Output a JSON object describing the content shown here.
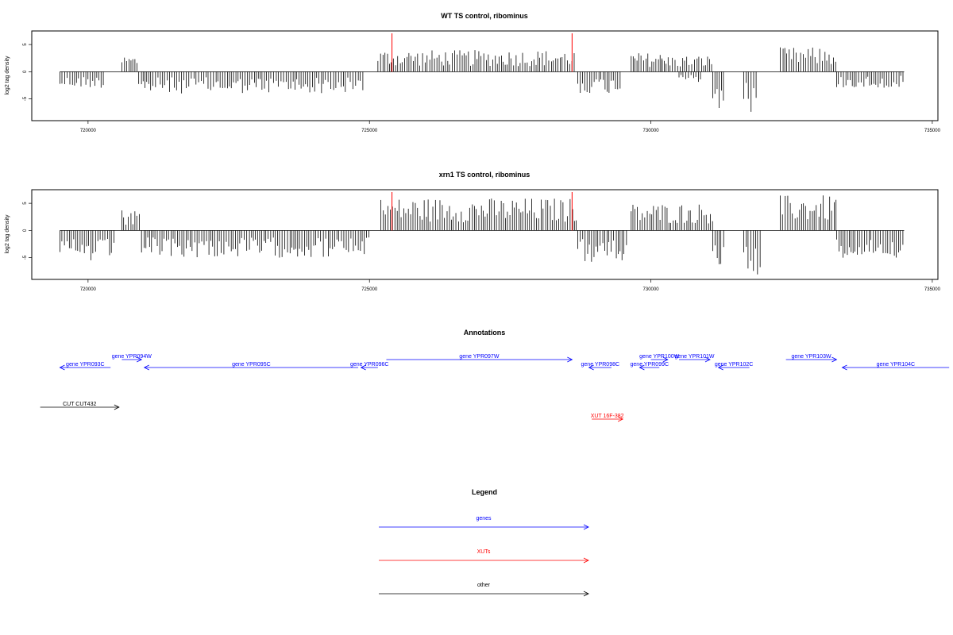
{
  "chart_data": [
    {
      "type": "bar",
      "title": "WT TS control, ribominus",
      "xlabel": "",
      "ylabel": "log2 tag density",
      "xlim": [
        719000,
        735100
      ],
      "ylim": [
        -9,
        7.5
      ],
      "xticks": [
        720000,
        725000,
        730000,
        735000
      ],
      "yticks": [
        -5,
        0,
        5
      ],
      "markers": [
        725400,
        728600
      ],
      "marker_color": "#ff0000",
      "segments": [
        {
          "start": 719500,
          "end": 720300,
          "lo": -3,
          "hi": 0
        },
        {
          "start": 720600,
          "end": 720900,
          "lo": 0,
          "hi": 3
        },
        {
          "start": 720900,
          "end": 724900,
          "lo": -4,
          "hi": 0
        },
        {
          "start": 725150,
          "end": 728650,
          "lo": 0,
          "hi": 4
        },
        {
          "start": 728700,
          "end": 729500,
          "lo": -4,
          "hi": 0
        },
        {
          "start": 729650,
          "end": 730200,
          "lo": 0,
          "hi": 3.5
        },
        {
          "start": 730500,
          "end": 730900,
          "lo": -2,
          "hi": 0
        },
        {
          "start": 730200,
          "end": 731100,
          "lo": 0,
          "hi": 3
        },
        {
          "start": 731100,
          "end": 731300,
          "lo": -7,
          "hi": 0
        },
        {
          "start": 731650,
          "end": 731900,
          "lo": -8,
          "hi": 0
        },
        {
          "start": 732300,
          "end": 733300,
          "lo": 0,
          "hi": 4.5
        },
        {
          "start": 733300,
          "end": 734500,
          "lo": -3,
          "hi": 0
        }
      ]
    },
    {
      "type": "bar",
      "title": "xrn1 TS control, ribominus",
      "xlabel": "",
      "ylabel": "log2 tag density",
      "xlim": [
        719000,
        735100
      ],
      "ylim": [
        -9,
        7.5
      ],
      "xticks": [
        720000,
        725000,
        730000,
        735000
      ],
      "yticks": [
        -5,
        0,
        5
      ],
      "markers": [
        725400,
        728600
      ],
      "marker_color": "#ff0000",
      "segments": [
        {
          "start": 719500,
          "end": 720500,
          "lo": -6,
          "hi": 0
        },
        {
          "start": 720600,
          "end": 720950,
          "lo": 0,
          "hi": 4
        },
        {
          "start": 720950,
          "end": 725000,
          "lo": -5,
          "hi": 0
        },
        {
          "start": 725200,
          "end": 728700,
          "lo": 0,
          "hi": 6
        },
        {
          "start": 728700,
          "end": 729600,
          "lo": -6,
          "hi": 0
        },
        {
          "start": 729650,
          "end": 731100,
          "lo": 0,
          "hi": 5
        },
        {
          "start": 731100,
          "end": 731300,
          "lo": -7,
          "hi": 0
        },
        {
          "start": 731650,
          "end": 731950,
          "lo": -8.5,
          "hi": 0
        },
        {
          "start": 732300,
          "end": 733300,
          "lo": 0,
          "hi": 6.5
        },
        {
          "start": 733300,
          "end": 734500,
          "lo": -5,
          "hi": 0
        }
      ]
    }
  ],
  "annotations": {
    "title": "Annotations",
    "items": [
      {
        "label": "gene YPR093C",
        "start": 720400,
        "end": 719500,
        "row": 1,
        "color": "#0000ff"
      },
      {
        "label": "gene YPR094W",
        "start": 720600,
        "end": 720950,
        "row": 0,
        "color": "#0000ff"
      },
      {
        "label": "gene YPR095C",
        "start": 724800,
        "end": 721000,
        "row": 1,
        "color": "#0000ff"
      },
      {
        "label": "gene YPR096C",
        "start": 725150,
        "end": 724850,
        "row": 1,
        "color": "#0000ff"
      },
      {
        "label": "gene YPR097W",
        "start": 725300,
        "end": 728600,
        "row": 0,
        "color": "#0000ff"
      },
      {
        "label": "gene YPR098C",
        "start": 729300,
        "end": 728900,
        "row": 1,
        "color": "#0000ff"
      },
      {
        "label": "gene YPR099C",
        "start": 730150,
        "end": 729800,
        "row": 1,
        "color": "#0000ff"
      },
      {
        "label": "gene YPR100W",
        "start": 730000,
        "end": 730300,
        "row": 0,
        "color": "#0000ff"
      },
      {
        "label": "gene YPR101W",
        "start": 730500,
        "end": 731050,
        "row": 0,
        "color": "#0000ff"
      },
      {
        "label": "gene YPR102C",
        "start": 731750,
        "end": 731200,
        "row": 1,
        "color": "#0000ff"
      },
      {
        "label": "gene YPR103W",
        "start": 732400,
        "end": 733300,
        "row": 0,
        "color": "#0000ff"
      },
      {
        "label": "gene YPR104C",
        "start": 735300,
        "end": 733400,
        "row": 1,
        "color": "#0000ff"
      },
      {
        "label": "CUT CUT432",
        "start": 719150,
        "end": 720550,
        "row": 6,
        "color": "#000000"
      },
      {
        "label": "XUT 16F-382",
        "start": 728950,
        "end": 729500,
        "row": 7.5,
        "color": "#ff0000"
      }
    ]
  },
  "legend": {
    "title": "Legend",
    "items": [
      {
        "label": "genes",
        "color": "#0000ff"
      },
      {
        "label": "XUTs",
        "color": "#ff0000"
      },
      {
        "label": "other",
        "color": "#000000"
      }
    ]
  }
}
